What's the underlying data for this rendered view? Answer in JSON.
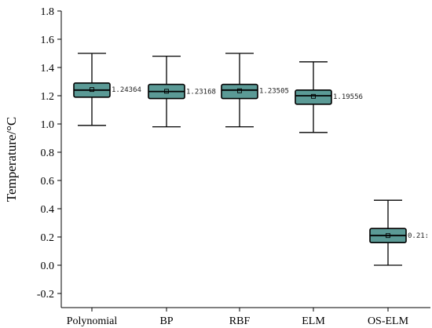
{
  "chart_data": {
    "type": "box",
    "ylabel": "Temperature/°C",
    "xlabel": "",
    "ylim": [
      -0.3,
      1.8
    ],
    "yticks": [
      -0.2,
      0.0,
      0.2,
      0.4,
      0.6,
      0.8,
      1.0,
      1.2,
      1.4,
      1.6,
      1.8
    ],
    "ytick_labels": [
      "-0.2",
      "0.0",
      "0.2",
      "0.4",
      "0.6",
      "0.8",
      "1.0",
      "1.2",
      "1.4",
      "1.6",
      "1.8"
    ],
    "categories": [
      "Polynomial",
      "BP",
      "RBF",
      "ELM",
      "OS-ELM"
    ],
    "boxes": [
      {
        "name": "Polynomial",
        "min": 0.99,
        "q1": 1.19,
        "median": 1.24,
        "q3": 1.29,
        "max": 1.5,
        "mean": 1.24364,
        "mean_label": "1.24364"
      },
      {
        "name": "BP",
        "min": 0.98,
        "q1": 1.18,
        "median": 1.23,
        "q3": 1.28,
        "max": 1.48,
        "mean": 1.23168,
        "mean_label": "1.23168"
      },
      {
        "name": "RBF",
        "min": 0.98,
        "q1": 1.18,
        "median": 1.24,
        "q3": 1.28,
        "max": 1.5,
        "mean": 1.23505,
        "mean_label": "1.23505"
      },
      {
        "name": "ELM",
        "min": 0.94,
        "q1": 1.14,
        "median": 1.2,
        "q3": 1.24,
        "max": 1.44,
        "mean": 1.19556,
        "mean_label": "1.19556"
      },
      {
        "name": "OS-ELM",
        "min": 0.0,
        "q1": 0.16,
        "median": 0.21,
        "q3": 0.26,
        "max": 0.46,
        "mean": 0.21,
        "mean_label": "0.21:"
      }
    ],
    "box_fill": "#5b9a96",
    "line_color": "#000000",
    "grid": false
  }
}
